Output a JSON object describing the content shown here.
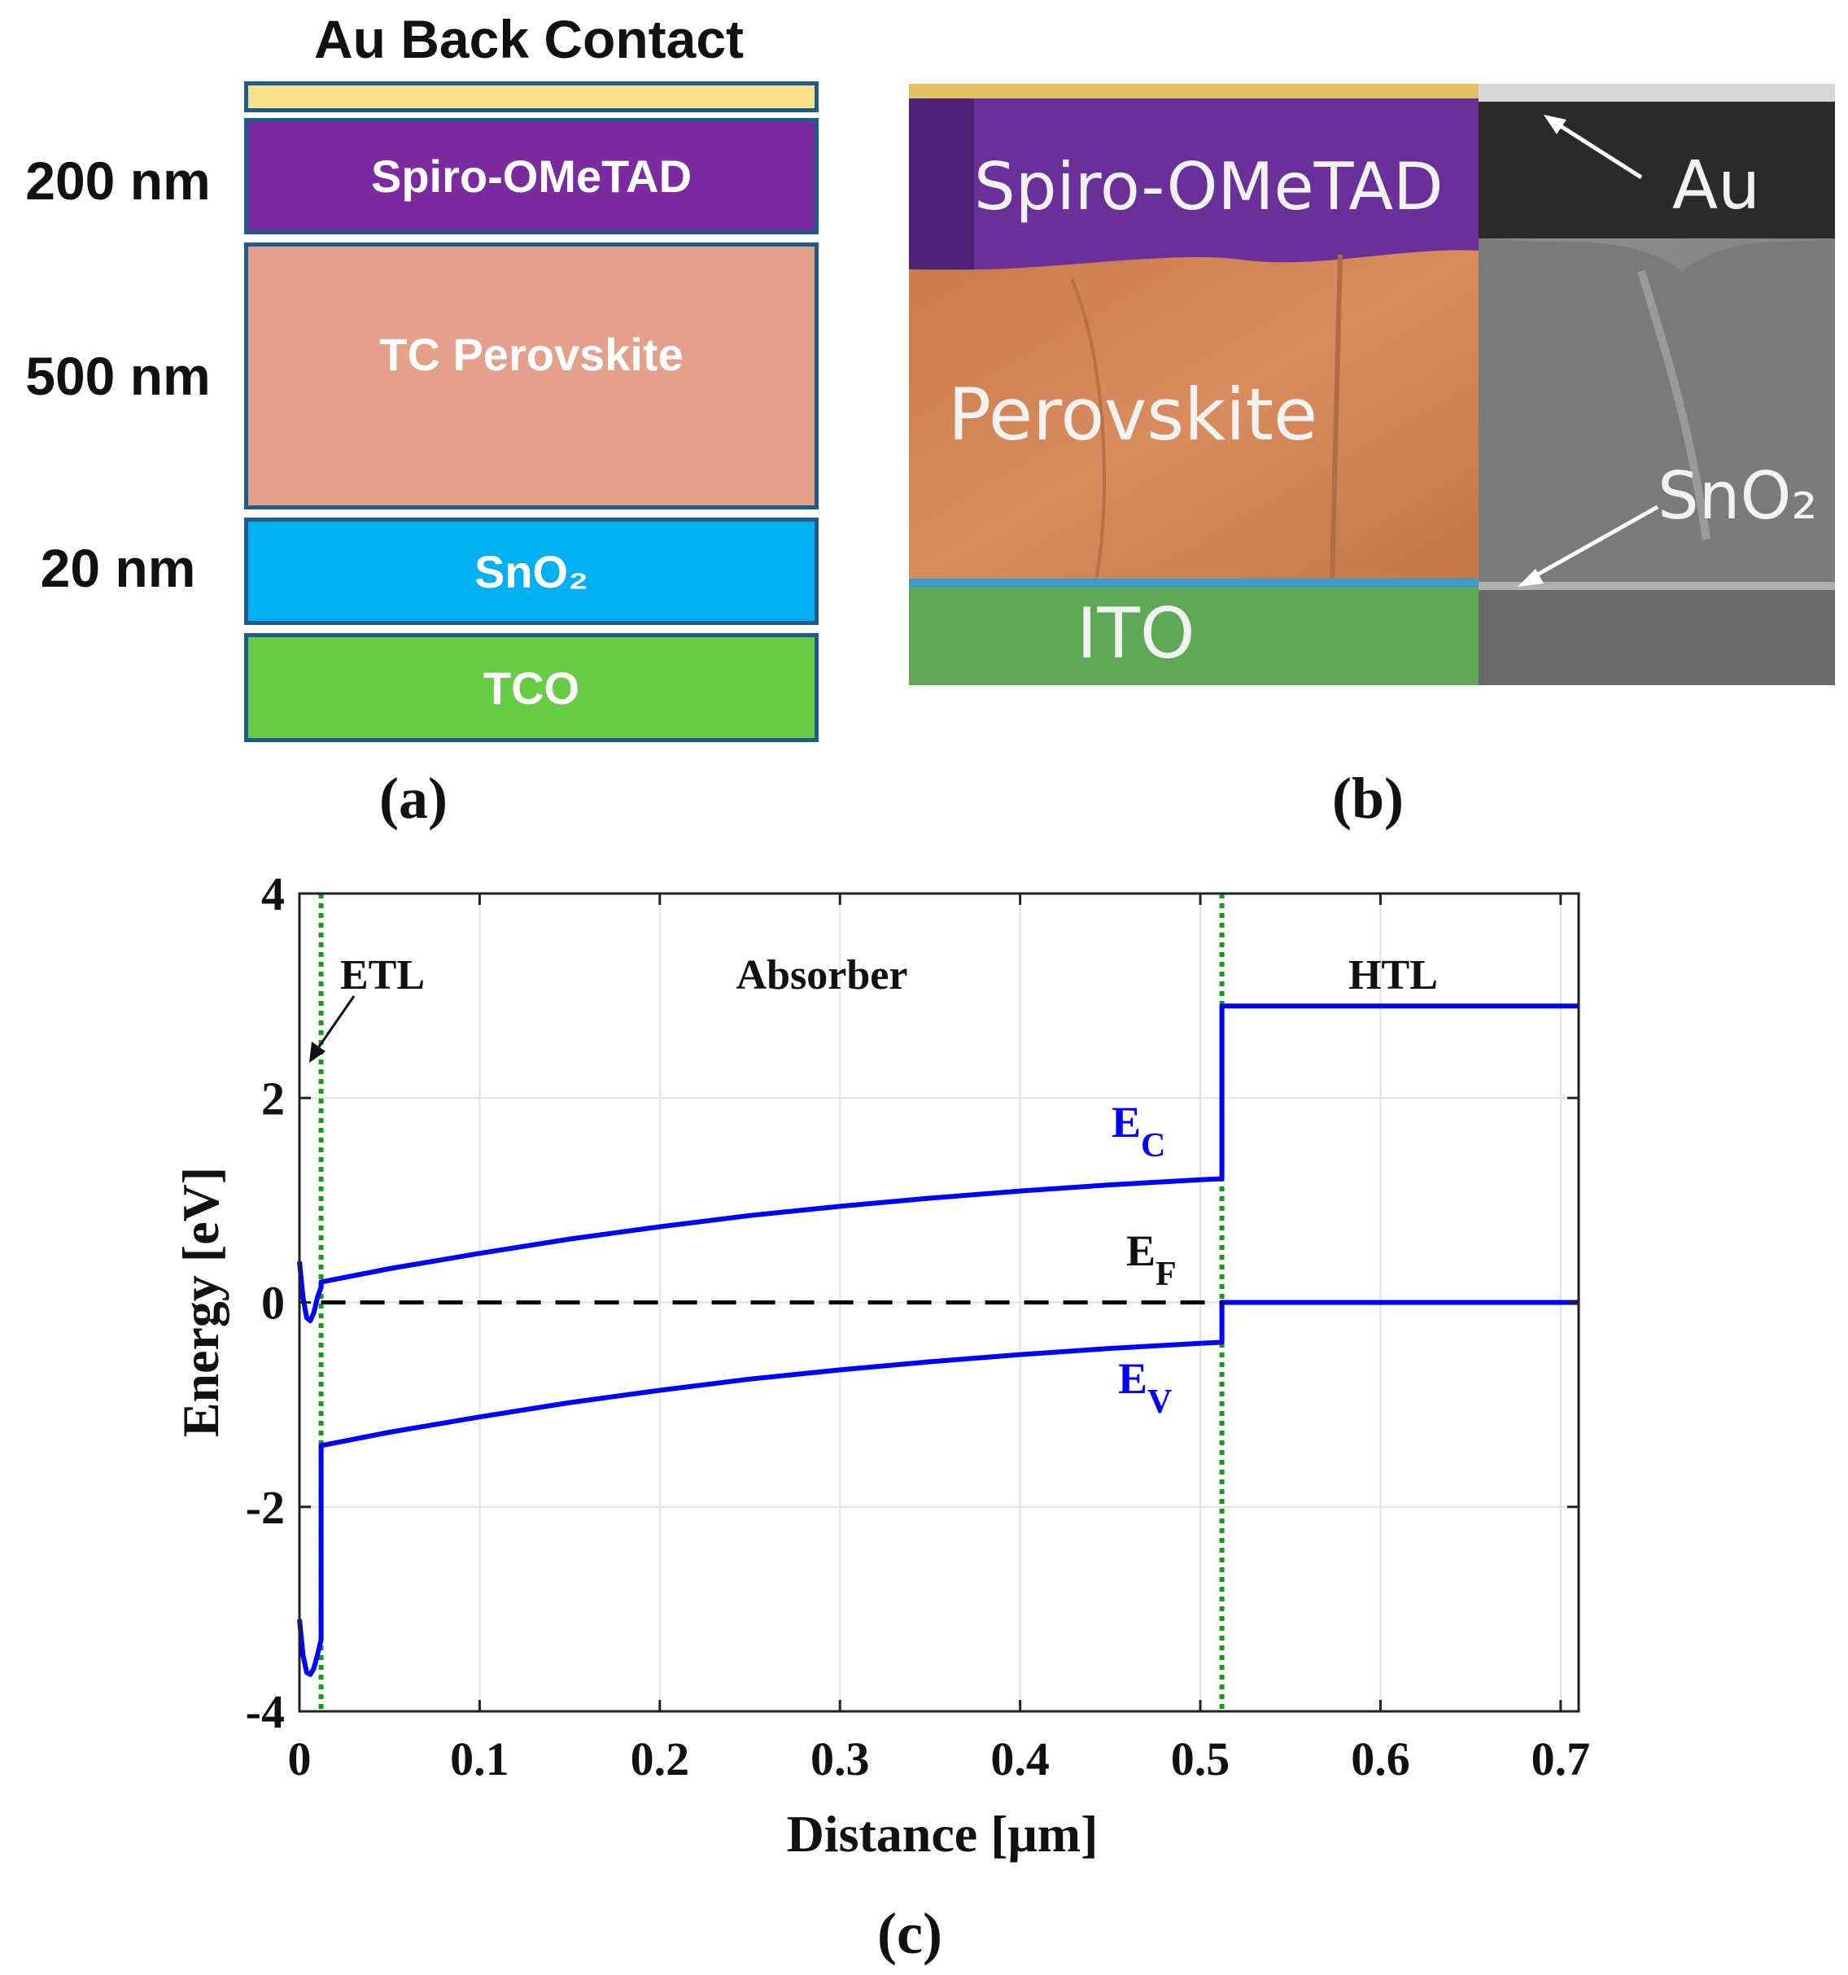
{
  "panel_a": {
    "title": "Au Back Contact",
    "layers": [
      {
        "name": "Au",
        "label": "",
        "color": "#fce28a"
      },
      {
        "name": "Spiro-OMeTAD",
        "label": "Spiro-OMeTAD",
        "thickness": "200 nm",
        "color": "#7b2aa0"
      },
      {
        "name": "TC Perovskite",
        "label": "TC Perovskite",
        "thickness": "500 nm",
        "color": "#e4a08a"
      },
      {
        "name": "SnO2",
        "label": "SnO₂",
        "thickness": "20 nm",
        "color": "#00b0f0"
      },
      {
        "name": "TCO",
        "label": "TCO",
        "color": "#66cc44"
      }
    ],
    "caption": "(a)"
  },
  "panel_b": {
    "labels": {
      "spiro": "Spiro-OMeTAD",
      "au": "Au",
      "perovskite": "Perovskite",
      "sno2": "SnO₂",
      "ito": "ITO"
    },
    "caption": "(b)"
  },
  "chart_data": {
    "type": "line",
    "title": "",
    "xlabel": "Distance [μm]",
    "ylabel": "Energy [eV]",
    "xlim": [
      0,
      0.71
    ],
    "ylim": [
      -4,
      4
    ],
    "xticks": [
      0,
      0.1,
      0.2,
      0.3,
      0.4,
      0.5,
      0.6,
      0.7
    ],
    "xtick_labels": [
      "0",
      "0.1",
      "0.2",
      "0.3",
      "0.4",
      "0.5",
      "0.6",
      "0.7"
    ],
    "yticks": [
      -4,
      -2,
      0,
      2,
      4
    ],
    "ytick_labels": [
      "-4",
      "-2",
      "0",
      "2",
      "4"
    ],
    "grid": true,
    "regions": [
      {
        "name": "ETL",
        "label": "ETL"
      },
      {
        "name": "Absorber",
        "label": "Absorber"
      },
      {
        "name": "HTL",
        "label": "HTL"
      }
    ],
    "interfaces": [
      0.012,
      0.512
    ],
    "series": [
      {
        "name": "Ec",
        "label_main": "E",
        "label_sub": "C",
        "color": "#0000ff",
        "x": [
          0,
          0.002,
          0.004,
          0.006,
          0.008,
          0.01,
          0.012,
          0.012,
          0.05,
          0.1,
          0.15,
          0.2,
          0.25,
          0.3,
          0.35,
          0.4,
          0.45,
          0.5,
          0.512,
          0.512,
          0.71
        ],
        "y": [
          0.4,
          0.05,
          -0.15,
          -0.18,
          -0.1,
          0.05,
          0.15,
          0.2,
          0.33,
          0.48,
          0.62,
          0.74,
          0.85,
          0.94,
          1.02,
          1.09,
          1.15,
          1.2,
          1.21,
          2.9,
          2.9
        ]
      },
      {
        "name": "Ev",
        "label_main": "E",
        "label_sub": "V",
        "color": "#0000ff",
        "x": [
          0,
          0.002,
          0.004,
          0.006,
          0.008,
          0.01,
          0.012,
          0.012,
          0.05,
          0.1,
          0.15,
          0.2,
          0.25,
          0.3,
          0.35,
          0.4,
          0.45,
          0.5,
          0.512,
          0.512,
          0.71
        ],
        "y": [
          -3.1,
          -3.45,
          -3.62,
          -3.64,
          -3.58,
          -3.45,
          -3.3,
          -1.4,
          -1.27,
          -1.12,
          -0.98,
          -0.86,
          -0.75,
          -0.66,
          -0.58,
          -0.51,
          -0.45,
          -0.4,
          -0.39,
          0.0,
          0.0
        ]
      },
      {
        "name": "Ef",
        "label_main": "E",
        "label_sub": "F",
        "color": "#000000",
        "dashed": true,
        "x": [
          0.012,
          0.512
        ],
        "y": [
          0,
          0
        ]
      }
    ],
    "annotations": [
      {
        "text": "ETL",
        "arrow_to": [
          0.006,
          2.3
        ]
      }
    ],
    "caption": "(c)"
  }
}
